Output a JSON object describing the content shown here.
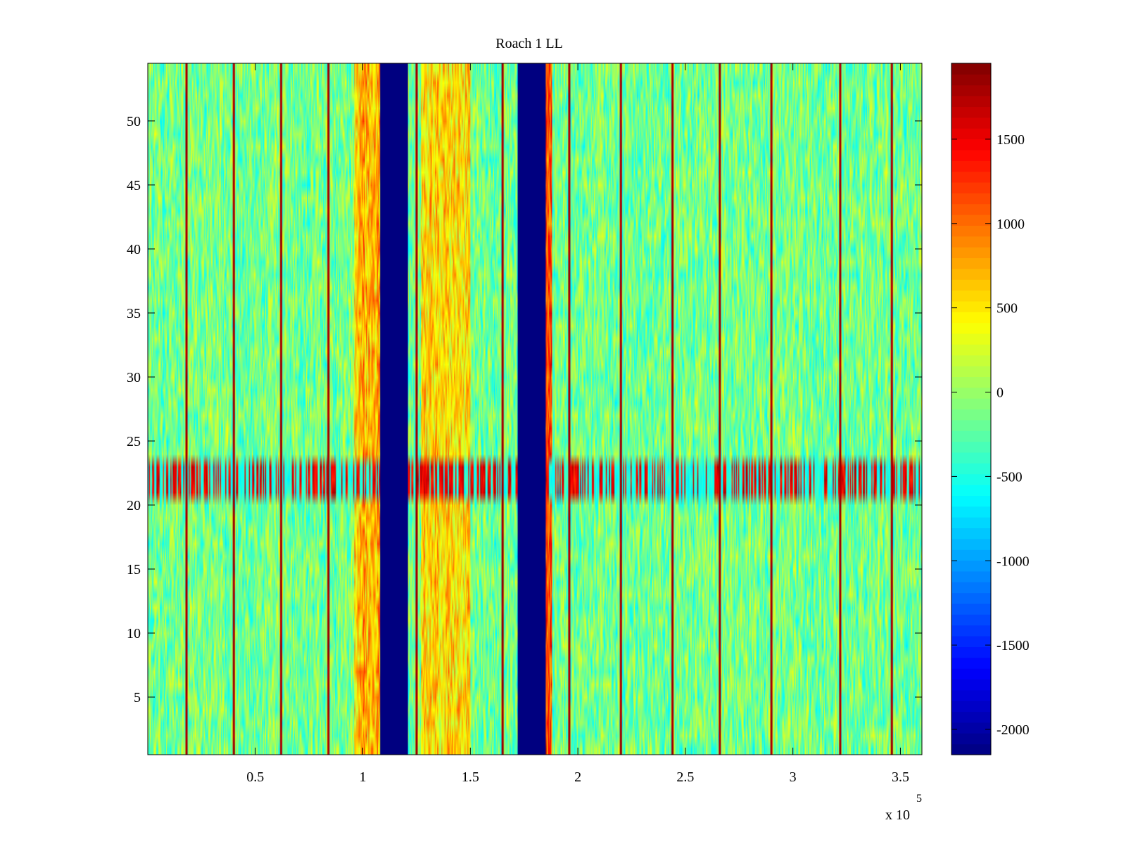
{
  "chart_data": {
    "type": "heatmap",
    "title": "Roach 1 LL",
    "xlabel": "",
    "ylabel": "",
    "x_range": [
      0,
      360000
    ],
    "y_range": [
      0.5,
      54.5
    ],
    "x_ticks": [
      50000,
      100000,
      150000,
      200000,
      250000,
      300000,
      350000
    ],
    "x_tick_labels": [
      "0.5",
      "1",
      "1.5",
      "2",
      "2.5",
      "3",
      "3.5"
    ],
    "x_exponent_label": "x 10",
    "x_exponent": "5",
    "y_ticks": [
      5,
      10,
      15,
      20,
      25,
      30,
      35,
      40,
      45,
      50
    ],
    "y_tick_labels": [
      "5",
      "10",
      "15",
      "20",
      "25",
      "30",
      "35",
      "40",
      "45",
      "50"
    ],
    "colormap": "jet",
    "clim": [
      -2150,
      1950
    ],
    "colorbar_ticks": [
      1500,
      1000,
      500,
      0,
      -500,
      -1000,
      -1500,
      -2000
    ],
    "colorbar_tick_labels": [
      "1500",
      "1000",
      "500",
      "0",
      "-500",
      "-1000",
      "-1500",
      "-2000"
    ],
    "background_level": -150,
    "notch_bands": [
      {
        "x_start": 108000,
        "x_end": 121000,
        "value": -2150
      },
      {
        "x_start": 172000,
        "x_end": 185000,
        "value": -2150
      }
    ],
    "warm_bands": [
      {
        "x_start": 96000,
        "x_end": 108000,
        "value": 700
      },
      {
        "x_start": 127000,
        "x_end": 150000,
        "value": 550
      },
      {
        "x_start": 185000,
        "x_end": 188000,
        "value": 1200
      }
    ],
    "spike_lines_x": [
      18000,
      40000,
      62000,
      84000,
      125000,
      165000,
      196000,
      220000,
      244000,
      266000,
      290000,
      322000,
      346000
    ],
    "spike_value": 1900,
    "interference_rows": {
      "y_start": 20.5,
      "y_end": 23.5,
      "value": 1500
    }
  }
}
